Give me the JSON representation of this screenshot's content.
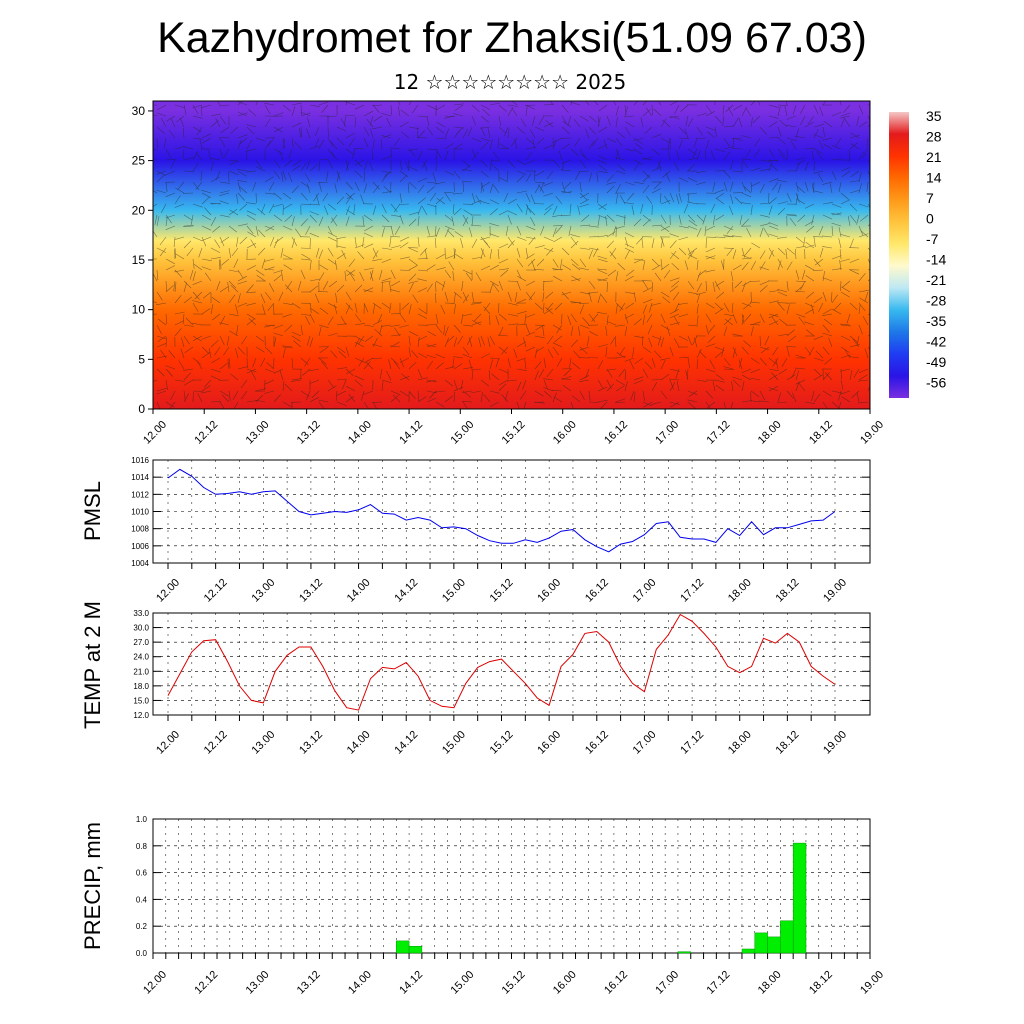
{
  "title": "Kazhydromet for Zhaksi(51.09 67.03)",
  "subtitle": "12 ☆☆☆☆☆☆☆☆ 2025",
  "time_ticks": [
    "12.00",
    "12.12",
    "13.00",
    "13.12",
    "14.00",
    "14.12",
    "15.00",
    "15.12",
    "16.00",
    "16.12",
    "17.00",
    "17.12",
    "18.00",
    "18.12",
    "19.00"
  ],
  "chart_data": [
    {
      "type": "heatmap",
      "title": "",
      "xlabel": "",
      "ylabel": "",
      "x": [
        "12.00",
        "12.12",
        "13.00",
        "13.12",
        "14.00",
        "14.12",
        "15.00",
        "15.12",
        "16.00",
        "16.12",
        "17.00",
        "17.12",
        "18.00",
        "18.12",
        "19.00"
      ],
      "yticks": [
        "0",
        "5",
        "10",
        "15",
        "20",
        "25",
        "30"
      ],
      "ylim": [
        0,
        31
      ],
      "colorbar": {
        "labels": [
          "35",
          "28",
          "21",
          "14",
          "7",
          "0",
          "-7",
          "-14",
          "-21",
          "-28",
          "-35",
          "-42",
          "-49",
          "-56"
        ],
        "colors": [
          "#f4c7c7",
          "#e31a1c",
          "#ff3300",
          "#ff6a00",
          "#ff9a1a",
          "#ffc43d",
          "#ffe86b",
          "#fffacd",
          "#bde8f4",
          "#38b9ef",
          "#1e78e8",
          "#1f3cf2",
          "#2a14e6",
          "#7a2fe0"
        ]
      },
      "vertical_profile_c": [
        {
          "level": 0,
          "value": 28
        },
        {
          "level": 5,
          "value": 22
        },
        {
          "level": 10,
          "value": 12
        },
        {
          "level": 15,
          "value": 0
        },
        {
          "level": 17,
          "value": -10
        },
        {
          "level": 20,
          "value": -30
        },
        {
          "level": 25,
          "value": -48
        },
        {
          "level": 30,
          "value": -56
        }
      ],
      "overlay": "wind barbs"
    },
    {
      "type": "line",
      "ylabel": "PMSL",
      "ylim": [
        1004,
        1016
      ],
      "yticks": [
        "1016",
        "1014",
        "1012",
        "1010",
        "1008",
        "1006",
        "1004"
      ],
      "grid": true,
      "x": [
        "12.00",
        "12.03",
        "12.06",
        "12.09",
        "12.12",
        "12.15",
        "12.18",
        "12.21",
        "13.00",
        "13.03",
        "13.06",
        "13.09",
        "13.12",
        "13.15",
        "13.18",
        "13.21",
        "14.00",
        "14.03",
        "14.06",
        "14.09",
        "14.12",
        "14.15",
        "14.18",
        "14.21",
        "15.00",
        "15.03",
        "15.06",
        "15.09",
        "15.12",
        "15.15",
        "15.18",
        "15.21",
        "16.00",
        "16.03",
        "16.06",
        "16.09",
        "16.12",
        "16.15",
        "16.18",
        "16.21",
        "17.00",
        "17.03",
        "17.06",
        "17.09",
        "17.12",
        "17.15",
        "17.18",
        "17.21",
        "18.00",
        "18.03",
        "18.06",
        "18.09",
        "18.12",
        "18.15",
        "18.18",
        "18.21",
        "19.00"
      ],
      "series": [
        {
          "color": "#0000ee",
          "values": [
            1013.9,
            1014.9,
            1014.1,
            1012.8,
            1012.0,
            1012.1,
            1012.3,
            1012.0,
            1012.3,
            1012.4,
            1011.2,
            1010.0,
            1009.6,
            1009.8,
            1010.0,
            1009.9,
            1010.2,
            1010.8,
            1009.8,
            1009.7,
            1009.0,
            1009.3,
            1009.0,
            1008.1,
            1008.2,
            1008.0,
            1007.2,
            1006.6,
            1006.3,
            1006.3,
            1006.7,
            1006.4,
            1006.9,
            1007.7,
            1007.9,
            1006.7,
            1005.9,
            1005.3,
            1006.2,
            1006.5,
            1007.3,
            1008.6,
            1008.8,
            1007.0,
            1006.8,
            1006.8,
            1006.4,
            1008.0,
            1007.2,
            1008.8,
            1007.3,
            1008.1,
            1008.1,
            1008.5,
            1008.9,
            1009.0,
            1010.0
          ]
        }
      ]
    },
    {
      "type": "line",
      "ylabel": "TEMP at 2 M",
      "ylim": [
        12.0,
        33.0
      ],
      "yticks": [
        "33.0",
        "30.0",
        "27.0",
        "24.0",
        "21.0",
        "18.0",
        "15.0",
        "12.0"
      ],
      "grid": true,
      "x": [
        "12.00",
        "12.03",
        "12.06",
        "12.09",
        "12.12",
        "12.15",
        "12.18",
        "12.21",
        "13.00",
        "13.03",
        "13.06",
        "13.09",
        "13.12",
        "13.15",
        "13.18",
        "13.21",
        "14.00",
        "14.03",
        "14.06",
        "14.09",
        "14.12",
        "14.15",
        "14.18",
        "14.21",
        "15.00",
        "15.03",
        "15.06",
        "15.09",
        "15.12",
        "15.15",
        "15.18",
        "15.21",
        "16.00",
        "16.03",
        "16.06",
        "16.09",
        "16.12",
        "16.15",
        "16.18",
        "16.21",
        "17.00",
        "17.03",
        "17.06",
        "17.09",
        "17.12",
        "17.15",
        "17.18",
        "17.21",
        "18.00",
        "18.03",
        "18.06",
        "18.09",
        "18.12",
        "18.15",
        "18.18",
        "18.21",
        "19.00"
      ],
      "series": [
        {
          "color": "#dd0000",
          "values": [
            16.0,
            20.5,
            25.0,
            27.3,
            27.5,
            23.0,
            18.0,
            15.0,
            14.5,
            21.0,
            24.3,
            26.0,
            26.0,
            22.0,
            17.0,
            13.5,
            13.0,
            19.5,
            21.8,
            21.5,
            22.8,
            20.0,
            15.0,
            13.8,
            13.5,
            18.5,
            21.8,
            23.0,
            23.5,
            21.0,
            18.5,
            15.5,
            14.0,
            22.0,
            24.5,
            28.8,
            29.2,
            27.0,
            22.0,
            18.5,
            16.8,
            25.5,
            28.5,
            32.7,
            31.3,
            28.8,
            26.0,
            22.0,
            20.7,
            22.0,
            27.8,
            26.8,
            28.8,
            27.0,
            22.0,
            20.0,
            18.3
          ]
        }
      ]
    },
    {
      "type": "bar",
      "ylabel": "PRECIP, mm",
      "ylim": [
        0.0,
        1.0
      ],
      "yticks": [
        "1.0",
        "0.8",
        "0.6",
        "0.4",
        "0.2",
        "0.0"
      ],
      "grid": true,
      "bar_color": "#00ee00",
      "categories": [
        "14.09",
        "14.12",
        "17.03",
        "17.18",
        "17.21",
        "18.00",
        "18.03",
        "18.06"
      ],
      "values": [
        0.09,
        0.05,
        0.01,
        0.03,
        0.15,
        0.12,
        0.24,
        0.82
      ]
    }
  ]
}
